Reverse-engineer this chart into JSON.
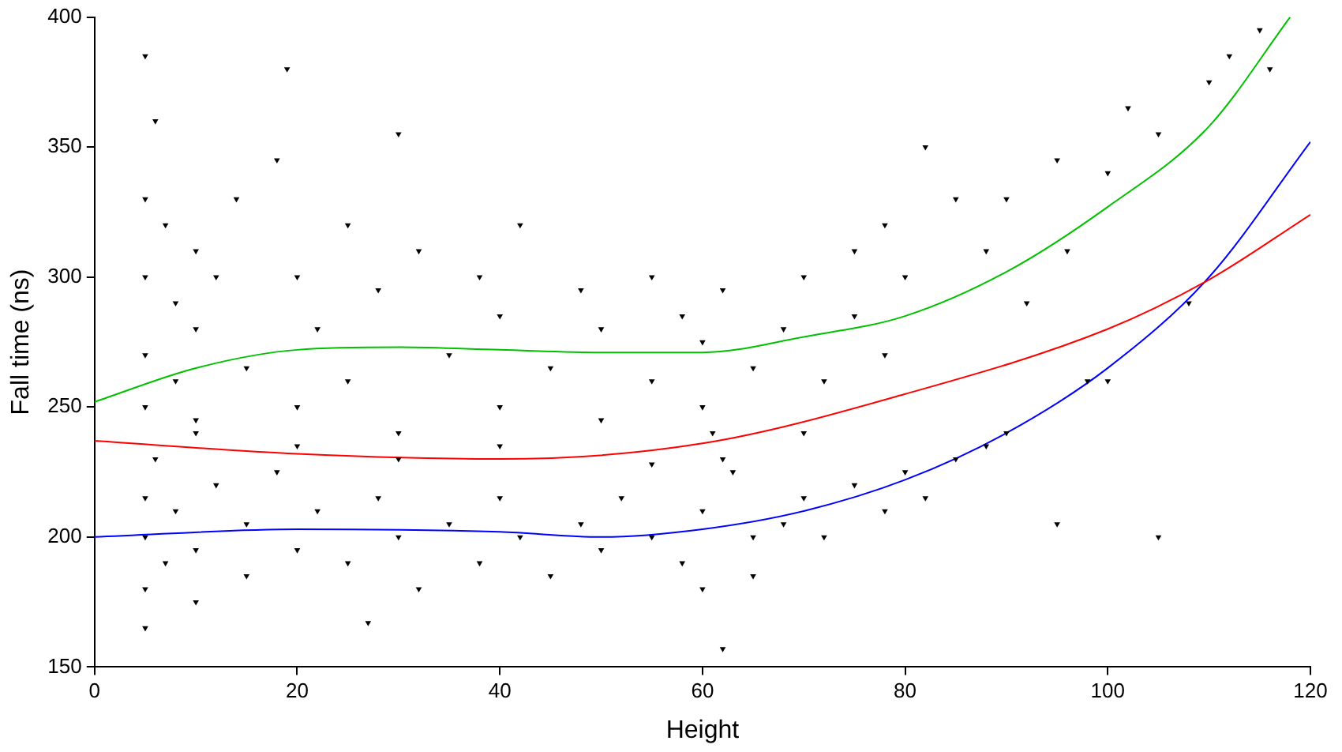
{
  "chart_data": {
    "type": "scatter",
    "xlabel": "Height",
    "ylabel": "Fall time (ns)",
    "xlim": [
      0,
      120
    ],
    "xticks": [
      0,
      20,
      40,
      60,
      80,
      100,
      120
    ],
    "ylim": [
      150,
      400
    ],
    "yticks": [
      150,
      200,
      250,
      300,
      350,
      400
    ],
    "grid": false,
    "legend": false,
    "marker": "triangle",
    "series": [
      {
        "color": "#000000",
        "x": [
          5,
          5,
          5,
          5,
          5,
          6,
          7,
          8,
          8,
          10,
          10,
          10,
          12,
          14,
          15,
          18,
          19,
          20,
          20,
          22,
          25,
          25,
          28,
          30,
          30,
          32,
          35,
          38,
          40,
          40,
          42,
          45,
          48,
          50,
          50,
          55,
          55,
          58,
          60,
          60,
          62,
          65,
          68,
          70,
          72,
          75,
          75,
          78,
          78,
          80,
          5,
          5,
          5,
          5,
          6,
          7,
          8,
          10,
          10,
          12,
          15,
          15,
          18,
          20,
          22,
          25,
          28,
          30,
          32,
          35,
          38,
          40,
          42,
          45,
          48,
          50,
          52,
          55,
          58,
          60,
          60,
          61,
          62,
          63,
          65,
          65,
          68,
          70,
          72,
          75,
          78,
          80,
          82,
          85,
          88,
          90,
          10,
          20,
          30,
          40,
          55,
          70,
          82,
          85,
          88,
          90,
          92,
          95,
          96,
          98,
          100,
          100,
          102,
          105,
          108,
          110,
          112,
          115,
          116,
          105,
          95,
          62,
          27
        ],
        "values": [
          385,
          330,
          300,
          270,
          250,
          360,
          320,
          290,
          260,
          310,
          280,
          245,
          300,
          330,
          265,
          345,
          380,
          300,
          250,
          280,
          320,
          260,
          295,
          240,
          355,
          310,
          270,
          300,
          250,
          285,
          320,
          265,
          295,
          245,
          280,
          300,
          260,
          285,
          250,
          275,
          295,
          265,
          280,
          300,
          260,
          310,
          285,
          320,
          270,
          300,
          165,
          180,
          200,
          215,
          230,
          190,
          210,
          175,
          195,
          220,
          205,
          185,
          225,
          195,
          210,
          190,
          215,
          200,
          180,
          205,
          190,
          215,
          200,
          185,
          205,
          195,
          215,
          200,
          190,
          180,
          210,
          240,
          230,
          225,
          200,
          185,
          205,
          215,
          200,
          220,
          210,
          225,
          215,
          230,
          235,
          240,
          240,
          235,
          230,
          235,
          228,
          240,
          350,
          330,
          310,
          330,
          290,
          345,
          310,
          260,
          260,
          340,
          365,
          355,
          290,
          375,
          385,
          395,
          380,
          200,
          205,
          157,
          167
        ]
      },
      {
        "type": "line",
        "color": "#00c000",
        "marker": "none",
        "x": [
          0,
          10,
          20,
          30,
          40,
          50,
          60,
          70,
          80,
          90,
          100,
          110,
          118
        ],
        "values": [
          252,
          265,
          272,
          273,
          272,
          271,
          271,
          277,
          285,
          302,
          327,
          358,
          400
        ]
      },
      {
        "type": "line",
        "color": "#ff0000",
        "marker": "none",
        "x": [
          0,
          20,
          40,
          60,
          80,
          100,
          110,
          120
        ],
        "values": [
          237,
          232,
          230,
          236,
          255,
          280,
          299,
          324
        ]
      },
      {
        "type": "line",
        "color": "#0000ff",
        "marker": "none",
        "x": [
          0,
          20,
          40,
          50,
          60,
          70,
          80,
          90,
          100,
          110,
          120
        ],
        "values": [
          200,
          203,
          202,
          200,
          203,
          210,
          222,
          240,
          265,
          300,
          352
        ]
      }
    ]
  }
}
